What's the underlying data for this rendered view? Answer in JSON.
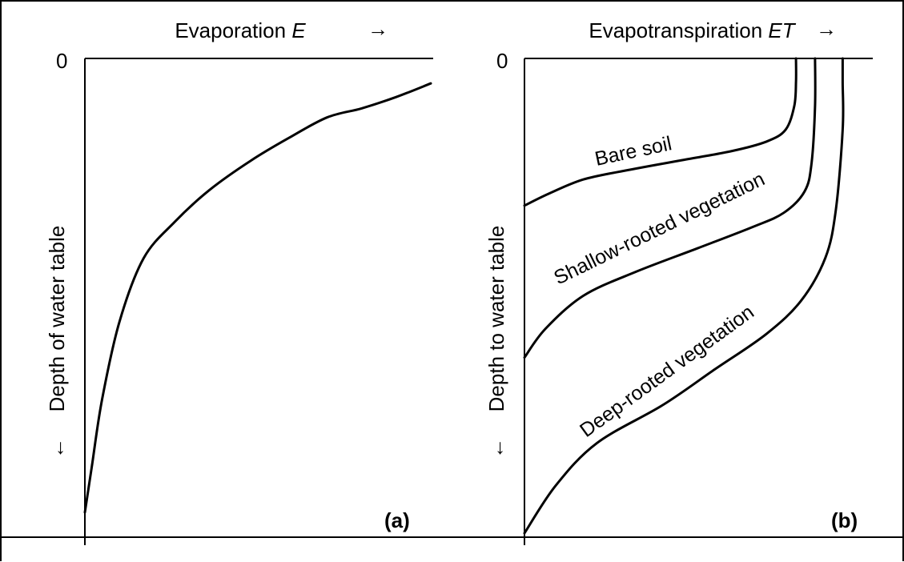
{
  "chart_data": [
    {
      "type": "line",
      "panel_label": "(a)",
      "xlabel": "Evaporation",
      "xlabel_symbol": "E",
      "xlabel_arrow": "→",
      "ylabel": "Depth of water table",
      "ylabel_arrow": "←",
      "y_tick_label": "0",
      "series": [
        {
          "x": [
            0.0,
            0.02,
            0.05,
            0.1,
            0.17,
            0.26,
            0.36,
            0.48,
            0.59,
            0.7,
            0.8,
            0.9,
            1.0
          ],
          "y": [
            1.0,
            0.9,
            0.75,
            0.58,
            0.44,
            0.36,
            0.29,
            0.225,
            0.175,
            0.13,
            0.11,
            0.085,
            0.055
          ]
        }
      ],
      "xlim": [
        0,
        1.0
      ],
      "ylim": [
        0,
        1.0
      ],
      "grid": false
    },
    {
      "type": "line",
      "panel_label": "(b)",
      "xlabel": "Evapotranspiration",
      "xlabel_symbol": "ET",
      "xlabel_arrow": "→",
      "ylabel": "Depth to water table",
      "ylabel_arrow": "←",
      "y_tick_label": "0",
      "series": [
        {
          "name": "Bare soil",
          "x": [
            0.0,
            0.07,
            0.17,
            0.3,
            0.45,
            0.6,
            0.7,
            0.755,
            0.78,
            0.785,
            0.785
          ],
          "y": [
            0.31,
            0.285,
            0.255,
            0.235,
            0.215,
            0.195,
            0.175,
            0.15,
            0.1,
            0.05,
            0.0
          ],
          "label_angle": -12
        },
        {
          "name": "Shallow-rooted vegetation",
          "x": [
            0.0,
            0.06,
            0.17,
            0.32,
            0.5,
            0.66,
            0.75,
            0.81,
            0.83,
            0.84,
            0.84
          ],
          "y": [
            0.63,
            0.57,
            0.5,
            0.45,
            0.4,
            0.355,
            0.325,
            0.28,
            0.22,
            0.1,
            0.0
          ],
          "label_angle": -26
        },
        {
          "name": "Deep-rooted vegetation",
          "x": [
            0.0,
            0.09,
            0.21,
            0.4,
            0.55,
            0.7,
            0.8,
            0.87,
            0.9,
            0.92,
            0.92,
            0.92
          ],
          "y": [
            1.0,
            0.9,
            0.81,
            0.73,
            0.655,
            0.58,
            0.51,
            0.42,
            0.32,
            0.15,
            0.05,
            0.0
          ],
          "label_angle": -36
        }
      ],
      "xlim": [
        0,
        1.0
      ],
      "ylim": [
        0,
        1.0
      ],
      "grid": false
    }
  ]
}
